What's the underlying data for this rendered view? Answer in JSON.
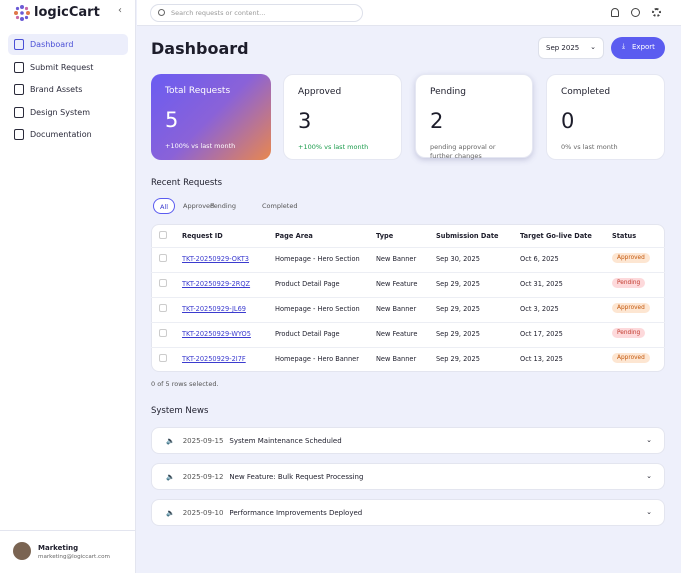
{
  "sidebar": {
    "brand": "logicCart",
    "nav": [
      "Dashboard",
      "Submit Request",
      "Brand Assets",
      "Design System",
      "Documentation"
    ],
    "user": {
      "name": "Marketing",
      "email": "marketing@logiccart.com"
    }
  },
  "topbar": {
    "search_placeholder": "Search requests or content..."
  },
  "header": {
    "title": "Dashboard",
    "period": "Sep 2025",
    "export": "Export"
  },
  "stats": [
    {
      "label": "Total Requests",
      "value": "5",
      "note": "+100% vs last month"
    },
    {
      "label": "Approved",
      "value": "3",
      "note": "+100% vs last month"
    },
    {
      "label": "Pending",
      "value": "2",
      "note": "pending approval or further changes"
    },
    {
      "label": "Completed",
      "value": "0",
      "note": "0% vs last month"
    }
  ],
  "recent": {
    "title": "Recent Requests",
    "tabs": [
      "All",
      "Approved",
      "Pending",
      "Completed"
    ],
    "columns": [
      "Request ID",
      "Page Area",
      "Type",
      "Submission Date",
      "Target Go-live Date",
      "Status"
    ],
    "rows": [
      [
        "TKT-20250929-OKT3",
        "Homepage - Hero Section",
        "New Banner",
        "Sep 30, 2025",
        "Oct 6, 2025",
        "Approved"
      ],
      [
        "TKT-20250929-2RQZ",
        "Product Detail Page",
        "New Feature",
        "Sep 29, 2025",
        "Oct 31, 2025",
        "Pending"
      ],
      [
        "TKT-20250929-JL69",
        "Homepage - Hero Section",
        "New Banner",
        "Sep 29, 2025",
        "Oct 3, 2025",
        "Approved"
      ],
      [
        "TKT-20250929-WYO5",
        "Product Detail Page",
        "New Feature",
        "Sep 29, 2025",
        "Oct 17, 2025",
        "Pending"
      ],
      [
        "TKT-20250929-2I7F",
        "Homepage - Hero Banner",
        "New Banner",
        "Sep 29, 2025",
        "Oct 13, 2025",
        "Approved"
      ]
    ],
    "footer": "0 of 5 rows selected."
  },
  "news": {
    "title": "System News",
    "items": [
      {
        "date": "2025-09-15",
        "text": "System Maintenance Scheduled"
      },
      {
        "date": "2025-09-12",
        "text": "New Feature: Bulk Request Processing"
      },
      {
        "date": "2025-09-10",
        "text": "Performance Improvements Deployed"
      }
    ]
  }
}
